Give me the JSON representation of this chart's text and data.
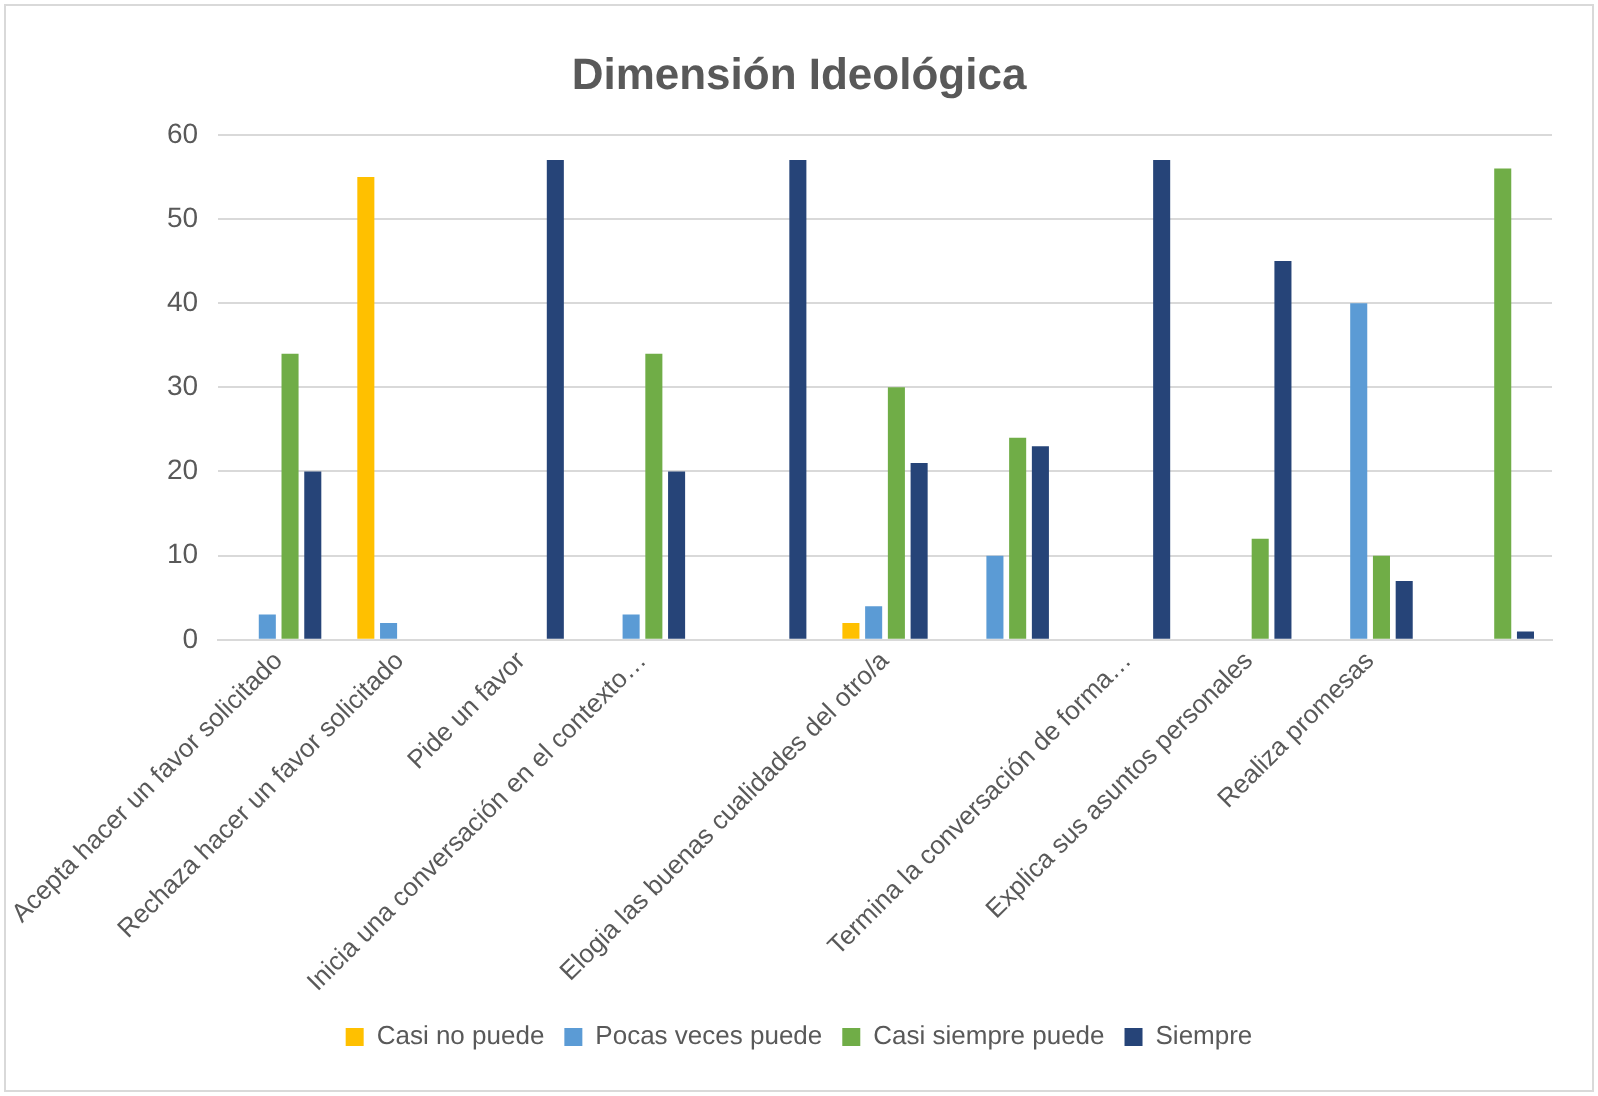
{
  "chart_data": {
    "type": "bar",
    "title": "Dimensión Ideológica",
    "categories": [
      "Acepta hacer un favor solicitado",
      "Rechaza hacer un favor solicitado",
      "Pide un favor",
      "Inicia una conversación en el contexto…",
      null,
      "Elogia las buenas cualidades del otro/a",
      null,
      "Termina la conversación de forma…",
      "Explica sus asuntos personales",
      "Realiza promesas",
      null
    ],
    "series": [
      {
        "name": "Casi no puede",
        "color": "#ffc000",
        "values": [
          0,
          55,
          0,
          0,
          0,
          2,
          0,
          0,
          0,
          0,
          0
        ]
      },
      {
        "name": "Pocas veces puede",
        "color": "#5b9bd5",
        "values": [
          3,
          2,
          0,
          3,
          0,
          4,
          10,
          0,
          0,
          40,
          0
        ]
      },
      {
        "name": "Casi siempre puede",
        "color": "#70ad47",
        "values": [
          34,
          0,
          0,
          34,
          0,
          30,
          24,
          0,
          12,
          10,
          56
        ]
      },
      {
        "name": "Siempre",
        "color": "#264478",
        "values": [
          20,
          0,
          57,
          20,
          57,
          21,
          23,
          57,
          45,
          7,
          1
        ]
      }
    ],
    "ylim": [
      0,
      60
    ],
    "yticks": [
      0,
      10,
      20,
      30,
      40,
      50,
      60
    ],
    "grid": "y",
    "legend": "bottom"
  }
}
